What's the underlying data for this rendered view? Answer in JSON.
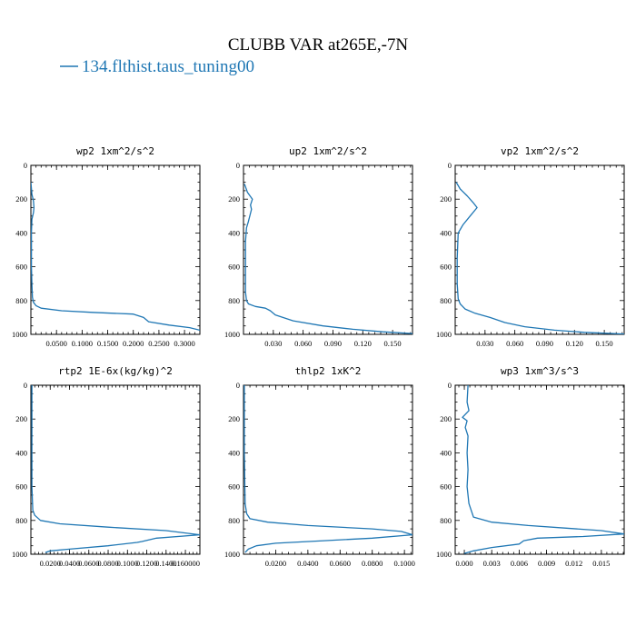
{
  "figure": {
    "title": "CLUBB VAR at265E,-7N",
    "legend": [
      {
        "label": "134.flthist.taus_tuning00",
        "color": "#1f77b4"
      }
    ]
  },
  "chart_data": [
    {
      "type": "line",
      "title": "wp2  1xm^2/s^2",
      "xlim": [
        0.0,
        0.33
      ],
      "ylim": [
        1000,
        0
      ],
      "yticks": [
        0,
        200,
        400,
        600,
        800,
        1000
      ],
      "ytick_labels": [
        "0",
        "200",
        "400",
        "600",
        "800",
        "1000"
      ],
      "xticks": [
        0.05,
        0.1,
        0.15,
        0.2,
        0.25,
        0.3
      ],
      "xtick_labels": [
        "0.0500",
        "0.1000",
        "0.1500",
        "0.2000",
        "0.2500",
        "0.3000"
      ],
      "series": [
        {
          "name": "134.flthist.taus_tuning00",
          "x": [
            0.0,
            0.002,
            0.005,
            0.006,
            0.005,
            0.002,
            0.001,
            0.001,
            0.001,
            0.002,
            0.003,
            0.005,
            0.01,
            0.02,
            0.06,
            0.12,
            0.2,
            0.22,
            0.23,
            0.27,
            0.31,
            0.33
          ],
          "y": [
            100,
            170,
            210,
            250,
            280,
            320,
            400,
            500,
            600,
            700,
            780,
            810,
            830,
            845,
            860,
            870,
            880,
            900,
            925,
            945,
            960,
            975
          ]
        }
      ]
    },
    {
      "type": "line",
      "title": "up2  1xm^2/s^2",
      "xlim": [
        0.0,
        0.17
      ],
      "ylim": [
        1000,
        0
      ],
      "yticks": [
        0,
        200,
        400,
        600,
        800,
        1000
      ],
      "ytick_labels": [
        "0",
        "200",
        "400",
        "600",
        "800",
        "1000"
      ],
      "xticks": [
        0.03,
        0.06,
        0.09,
        0.12,
        0.15
      ],
      "xtick_labels": [
        "0.030",
        "0.060",
        "0.090",
        "0.120",
        "0.150"
      ],
      "series": [
        {
          "name": "134.flthist.taus_tuning00",
          "x": [
            0.001,
            0.004,
            0.009,
            0.007,
            0.008,
            0.005,
            0.003,
            0.002,
            0.002,
            0.002,
            0.003,
            0.005,
            0.012,
            0.022,
            0.027,
            0.032,
            0.05,
            0.08,
            0.11,
            0.14,
            0.17
          ],
          "y": [
            110,
            160,
            200,
            235,
            260,
            330,
            370,
            450,
            600,
            750,
            800,
            820,
            835,
            845,
            860,
            885,
            920,
            950,
            970,
            985,
            995
          ]
        }
      ]
    },
    {
      "type": "line",
      "title": "vp2  1xm^2/s^2",
      "xlim": [
        0.0,
        0.17
      ],
      "ylim": [
        1000,
        0
      ],
      "yticks": [
        0,
        200,
        400,
        600,
        800,
        1000
      ],
      "ytick_labels": [
        "0",
        "200",
        "400",
        "600",
        "800",
        "1000"
      ],
      "xticks": [
        0.03,
        0.06,
        0.09,
        0.12,
        0.15
      ],
      "xtick_labels": [
        "0.030",
        "0.060",
        "0.090",
        "0.120",
        "0.150"
      ],
      "series": [
        {
          "name": "134.flthist.taus_tuning00",
          "x": [
            0.001,
            0.005,
            0.012,
            0.018,
            0.022,
            0.015,
            0.008,
            0.003,
            0.002,
            0.002,
            0.003,
            0.005,
            0.01,
            0.02,
            0.035,
            0.05,
            0.07,
            0.1,
            0.13,
            0.17
          ],
          "y": [
            100,
            140,
            180,
            220,
            250,
            300,
            350,
            400,
            550,
            700,
            790,
            820,
            850,
            875,
            900,
            930,
            955,
            975,
            988,
            998
          ]
        }
      ]
    },
    {
      "type": "line",
      "title": "rtp2  1E-6x(kg/kg)^2",
      "xlim": [
        0.0,
        0.175
      ],
      "ylim": [
        1000,
        0
      ],
      "yticks": [
        0,
        200,
        400,
        600,
        800,
        1000
      ],
      "ytick_labels": [
        "0",
        "200",
        "400",
        "600",
        "800",
        "1000"
      ],
      "xticks": [
        0.02,
        0.04,
        0.06,
        0.08,
        0.1,
        0.12,
        0.14,
        0.16
      ],
      "xtick_labels": [
        "0.0200",
        "0.0400",
        "0.0600",
        "0.0800",
        "0.1000",
        "0.1200",
        "0.1400",
        "0.160000"
      ],
      "series": [
        {
          "name": "134.flthist.taus_tuning00",
          "x": [
            0.001,
            0.001,
            0.001,
            0.002,
            0.004,
            0.01,
            0.03,
            0.08,
            0.14,
            0.175,
            0.13,
            0.115,
            0.11,
            0.08,
            0.04,
            0.02,
            0.015
          ],
          "y": [
            0,
            300,
            600,
            740,
            770,
            800,
            820,
            840,
            860,
            885,
            905,
            925,
            930,
            950,
            970,
            980,
            990
          ]
        }
      ]
    },
    {
      "type": "line",
      "title": "thlp2  1xK^2",
      "xlim": [
        0.0,
        0.105
      ],
      "ylim": [
        1000,
        0
      ],
      "yticks": [
        0,
        200,
        400,
        600,
        800,
        1000
      ],
      "ytick_labels": [
        "0",
        "200",
        "400",
        "600",
        "800",
        "1000"
      ],
      "xticks": [
        0.02,
        0.04,
        0.06,
        0.08,
        0.1
      ],
      "xtick_labels": [
        "0.0200",
        "0.0400",
        "0.0600",
        "0.0800",
        "0.1000"
      ],
      "series": [
        {
          "name": "134.flthist.taus_tuning00",
          "x": [
            0.0005,
            0.0005,
            0.001,
            0.002,
            0.004,
            0.015,
            0.04,
            0.08,
            0.098,
            0.105,
            0.08,
            0.05,
            0.02,
            0.008,
            0.003,
            0.001
          ],
          "y": [
            0,
            400,
            700,
            760,
            790,
            810,
            830,
            850,
            865,
            885,
            905,
            920,
            935,
            950,
            970,
            990
          ]
        }
      ]
    },
    {
      "type": "line",
      "title": "wp3  1xm^3/s^3",
      "xlim": [
        -0.001,
        0.0175
      ],
      "ylim": [
        1000,
        0
      ],
      "yticks": [
        0,
        200,
        400,
        600,
        800,
        1000
      ],
      "ytick_labels": [
        "0",
        "200",
        "400",
        "600",
        "800",
        "1000"
      ],
      "xticks": [
        0.0,
        0.003,
        0.006,
        0.009,
        0.012,
        0.015
      ],
      "xtick_labels": [
        "0.000",
        "0.003",
        "0.006",
        "0.009",
        "0.012",
        "0.015"
      ],
      "series": [
        {
          "name": "134.flthist.taus_tuning00",
          "x": [
            0.0004,
            0.0003,
            0.0005,
            -0.0002,
            0.0003,
            0.0001,
            0.0004,
            0.0003,
            0.0004,
            0.0003,
            0.0005,
            0.001,
            0.003,
            0.007,
            0.011,
            0.015,
            0.0175,
            0.013,
            0.008,
            0.0065,
            0.006,
            0.003,
            0.001,
            0.0
          ],
          "y": [
            0,
            100,
            150,
            190,
            210,
            250,
            300,
            400,
            500,
            600,
            700,
            780,
            810,
            830,
            845,
            860,
            880,
            895,
            905,
            920,
            940,
            960,
            980,
            995
          ]
        }
      ]
    }
  ]
}
